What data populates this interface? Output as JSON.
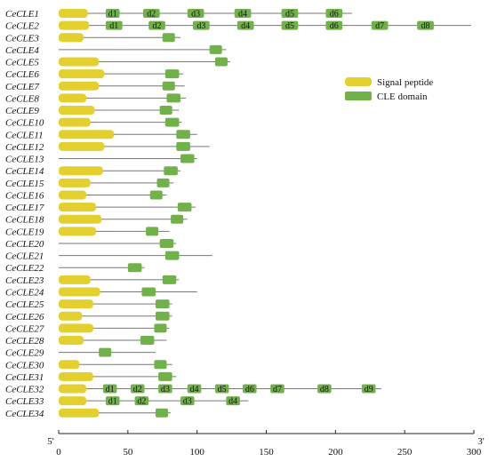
{
  "colors": {
    "signal": "#E3CF2D",
    "domain": "#70B14A",
    "line": "#777777",
    "axis": "#222222"
  },
  "legend": {
    "signal_label": "Signal peptide",
    "domain_label": "CLE domain"
  },
  "chart_data": {
    "type": "gene-structure",
    "xlim": [
      0,
      300
    ],
    "ticks": [
      0,
      50,
      100,
      150,
      200,
      250,
      300
    ],
    "axis_start_label": "5'",
    "axis_end_label": "3'",
    "genes": [
      {
        "name": "CeCLE1",
        "length": 212,
        "signal": 21,
        "domains": [
          {
            "start": 34,
            "end": 44,
            "label": "d1"
          },
          {
            "start": 61,
            "end": 73,
            "label": "d2"
          },
          {
            "start": 93,
            "end": 105,
            "label": "d3"
          },
          {
            "start": 127,
            "end": 139,
            "label": "d4"
          },
          {
            "start": 161,
            "end": 173,
            "label": "d5"
          },
          {
            "start": 193,
            "end": 205,
            "label": "d6"
          }
        ]
      },
      {
        "name": "CeCLE2",
        "length": 298,
        "signal": 22,
        "domains": [
          {
            "start": 34,
            "end": 46,
            "label": "d1"
          },
          {
            "start": 65,
            "end": 77,
            "label": "d2"
          },
          {
            "start": 97,
            "end": 109,
            "label": "d3"
          },
          {
            "start": 129,
            "end": 141,
            "label": "d4"
          },
          {
            "start": 161,
            "end": 173,
            "label": "d5"
          },
          {
            "start": 193,
            "end": 205,
            "label": "d6"
          },
          {
            "start": 226,
            "end": 238,
            "label": "d7"
          },
          {
            "start": 259,
            "end": 271,
            "label": "d8"
          }
        ]
      },
      {
        "name": "CeCLE3",
        "length": 88,
        "signal": 18,
        "domains": [
          {
            "start": 75,
            "end": 84
          }
        ]
      },
      {
        "name": "CeCLE4",
        "length": 121,
        "signal": 0,
        "domains": [
          {
            "start": 109,
            "end": 118
          }
        ]
      },
      {
        "name": "CeCLE5",
        "length": 124,
        "signal": 29,
        "domains": [
          {
            "start": 113,
            "end": 122
          }
        ]
      },
      {
        "name": "CeCLE6",
        "length": 90,
        "signal": 33,
        "domains": [
          {
            "start": 77,
            "end": 87
          }
        ]
      },
      {
        "name": "CeCLE7",
        "length": 91,
        "signal": 29,
        "domains": [
          {
            "start": 75,
            "end": 84
          }
        ]
      },
      {
        "name": "CeCLE8",
        "length": 92,
        "signal": 20,
        "domains": [
          {
            "start": 78,
            "end": 88
          }
        ]
      },
      {
        "name": "CeCLE9",
        "length": 87,
        "signal": 26,
        "domains": [
          {
            "start": 73,
            "end": 82
          }
        ]
      },
      {
        "name": "CeCLE10",
        "length": 89,
        "signal": 23,
        "domains": [
          {
            "start": 77,
            "end": 87
          }
        ]
      },
      {
        "name": "CeCLE11",
        "length": 100,
        "signal": 40,
        "domains": [
          {
            "start": 85,
            "end": 95
          }
        ]
      },
      {
        "name": "CeCLE12",
        "length": 109,
        "signal": 33,
        "domains": [
          {
            "start": 85,
            "end": 95
          }
        ]
      },
      {
        "name": "CeCLE13",
        "length": 100,
        "signal": 0,
        "domains": [
          {
            "start": 88,
            "end": 98
          }
        ]
      },
      {
        "name": "CeCLE14",
        "length": 88,
        "signal": 32,
        "domains": [
          {
            "start": 76,
            "end": 86
          }
        ]
      },
      {
        "name": "CeCLE15",
        "length": 83,
        "signal": 23,
        "domains": [
          {
            "start": 71,
            "end": 80
          }
        ]
      },
      {
        "name": "CeCLE16",
        "length": 78,
        "signal": 20,
        "domains": [
          {
            "start": 66,
            "end": 75
          }
        ]
      },
      {
        "name": "CeCLE17",
        "length": 99,
        "signal": 27,
        "domains": [
          {
            "start": 86,
            "end": 96
          }
        ]
      },
      {
        "name": "CeCLE18",
        "length": 93,
        "signal": 31,
        "domains": [
          {
            "start": 81,
            "end": 90
          }
        ]
      },
      {
        "name": "CeCLE19",
        "length": 80,
        "signal": 27,
        "domains": [
          {
            "start": 63,
            "end": 72
          }
        ]
      },
      {
        "name": "CeCLE20",
        "length": 85,
        "signal": 0,
        "domains": [
          {
            "start": 73,
            "end": 83
          }
        ]
      },
      {
        "name": "CeCLE21",
        "length": 111,
        "signal": 0,
        "domains": [
          {
            "start": 77,
            "end": 87
          }
        ]
      },
      {
        "name": "CeCLE22",
        "length": 62,
        "signal": 0,
        "domains": [
          {
            "start": 50,
            "end": 60
          }
        ]
      },
      {
        "name": "CeCLE23",
        "length": 87,
        "signal": 23,
        "domains": [
          {
            "start": 75,
            "end": 85
          }
        ]
      },
      {
        "name": "CeCLE24",
        "length": 100,
        "signal": 30,
        "domains": [
          {
            "start": 60,
            "end": 70
          }
        ]
      },
      {
        "name": "CeCLE25",
        "length": 82,
        "signal": 25,
        "domains": [
          {
            "start": 70,
            "end": 80
          }
        ]
      },
      {
        "name": "CeCLE26",
        "length": 82,
        "signal": 17,
        "domains": [
          {
            "start": 70,
            "end": 80
          }
        ]
      },
      {
        "name": "CeCLE27",
        "length": 80,
        "signal": 25,
        "domains": [
          {
            "start": 69,
            "end": 78
          }
        ]
      },
      {
        "name": "CeCLE28",
        "length": 78,
        "signal": 18,
        "domains": [
          {
            "start": 59,
            "end": 69
          }
        ]
      },
      {
        "name": "CeCLE29",
        "length": 70,
        "signal": 0,
        "domains": [
          {
            "start": 29,
            "end": 38
          }
        ]
      },
      {
        "name": "CeCLE30",
        "length": 82,
        "signal": 15,
        "domains": [
          {
            "start": 69,
            "end": 78
          }
        ]
      },
      {
        "name": "CeCLE31",
        "length": 85,
        "signal": 25,
        "domains": [
          {
            "start": 72,
            "end": 82
          }
        ]
      },
      {
        "name": "CeCLE32",
        "length": 233,
        "signal": 20,
        "domains": [
          {
            "start": 32,
            "end": 42,
            "label": "d1"
          },
          {
            "start": 52,
            "end": 62,
            "label": "d2"
          },
          {
            "start": 72,
            "end": 82,
            "label": "d3"
          },
          {
            "start": 93,
            "end": 103,
            "label": "d4"
          },
          {
            "start": 113,
            "end": 123,
            "label": "d5"
          },
          {
            "start": 133,
            "end": 143,
            "label": "d6"
          },
          {
            "start": 153,
            "end": 163,
            "label": "d7"
          },
          {
            "start": 187,
            "end": 197,
            "label": "d8"
          },
          {
            "start": 219,
            "end": 229,
            "label": "d9"
          }
        ]
      },
      {
        "name": "CeCLE33",
        "length": 137,
        "signal": 20,
        "domains": [
          {
            "start": 34,
            "end": 44,
            "label": "d1"
          },
          {
            "start": 55,
            "end": 65,
            "label": "d2"
          },
          {
            "start": 88,
            "end": 98,
            "label": "d3"
          },
          {
            "start": 121,
            "end": 131,
            "label": "d4"
          }
        ]
      },
      {
        "name": "CeCLE34",
        "length": 81,
        "signal": 29,
        "domains": [
          {
            "start": 70,
            "end": 79
          }
        ]
      }
    ]
  }
}
